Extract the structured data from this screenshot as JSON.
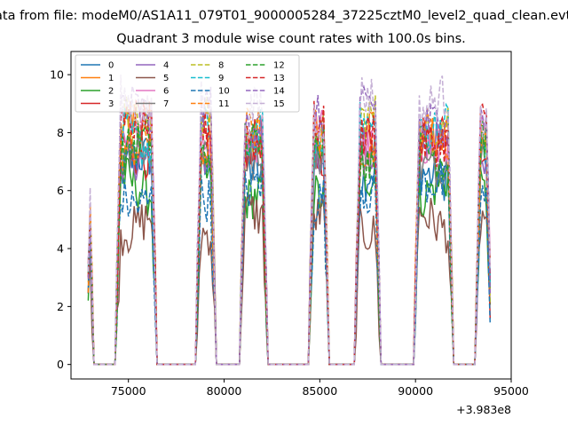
{
  "suptitle": "ata from file: modeM0/AS1A11_079T01_9000005284_37225cztM0_level2_quad_clean.evt",
  "title": "Quadrant 3 module wise count rates with 100.0s bins.",
  "chart_data": {
    "type": "line",
    "title": "Quadrant 3 module wise count rates with 100.0s bins.",
    "xlabel": "",
    "ylabel": "",
    "x_offset_label": "+3.983e8",
    "xlim": [
      72000,
      95000
    ],
    "ylim": [
      -0.5,
      10.8
    ],
    "x_ticks": [
      75000,
      80000,
      85000,
      90000,
      95000
    ],
    "x_tick_labels": [
      "75000",
      "80000",
      "85000",
      "90000",
      "95000"
    ],
    "y_ticks": [
      0,
      2,
      4,
      6,
      8,
      10
    ],
    "y_tick_labels": [
      "0",
      "2",
      "4",
      "6",
      "8",
      "10"
    ],
    "grid": false,
    "legend_position": "top-left",
    "legend_columns": 4,
    "good_time_intervals": [
      [
        72900,
        73100
      ],
      [
        74400,
        76400
      ],
      [
        78600,
        79500
      ],
      [
        80900,
        82200
      ],
      [
        84500,
        85400
      ],
      [
        86900,
        88100
      ],
      [
        90000,
        91900
      ],
      [
        93200,
        93900
      ]
    ],
    "series": [
      {
        "name": "0",
        "color": "#1f77b4",
        "dash": "solid",
        "level": 6.8
      },
      {
        "name": "1",
        "color": "#ff7f0e",
        "dash": "solid",
        "level": 8.1
      },
      {
        "name": "2",
        "color": "#2ca02c",
        "dash": "solid",
        "level": 6.1
      },
      {
        "name": "3",
        "color": "#d62728",
        "dash": "solid",
        "level": 7.6
      },
      {
        "name": "4",
        "color": "#9467bd",
        "dash": "solid",
        "level": 7.4
      },
      {
        "name": "5",
        "color": "#8c564b",
        "dash": "solid",
        "level": 4.9
      },
      {
        "name": "6",
        "color": "#e377c2",
        "dash": "solid",
        "level": 7.7
      },
      {
        "name": "7",
        "color": "#7f7f7f",
        "dash": "solid",
        "level": 7.2
      },
      {
        "name": "8",
        "color": "#bcbd22",
        "dash": "dashed",
        "level": 8.2
      },
      {
        "name": "9",
        "color": "#17becf",
        "dash": "dashed",
        "level": 7.9
      },
      {
        "name": "10",
        "color": "#1f77b4",
        "dash": "dashed",
        "level": 5.9
      },
      {
        "name": "11",
        "color": "#ff7f0e",
        "dash": "dashed",
        "level": 7.8
      },
      {
        "name": "12",
        "color": "#2ca02c",
        "dash": "dashed",
        "level": 7.5
      },
      {
        "name": "13",
        "color": "#d62728",
        "dash": "dashed",
        "level": 8.0
      },
      {
        "name": "14",
        "color": "#9467bd",
        "dash": "dashed",
        "level": 8.6
      },
      {
        "name": "15",
        "color": "#c5b0d5",
        "dash": "dashed",
        "level": 8.9
      }
    ]
  }
}
